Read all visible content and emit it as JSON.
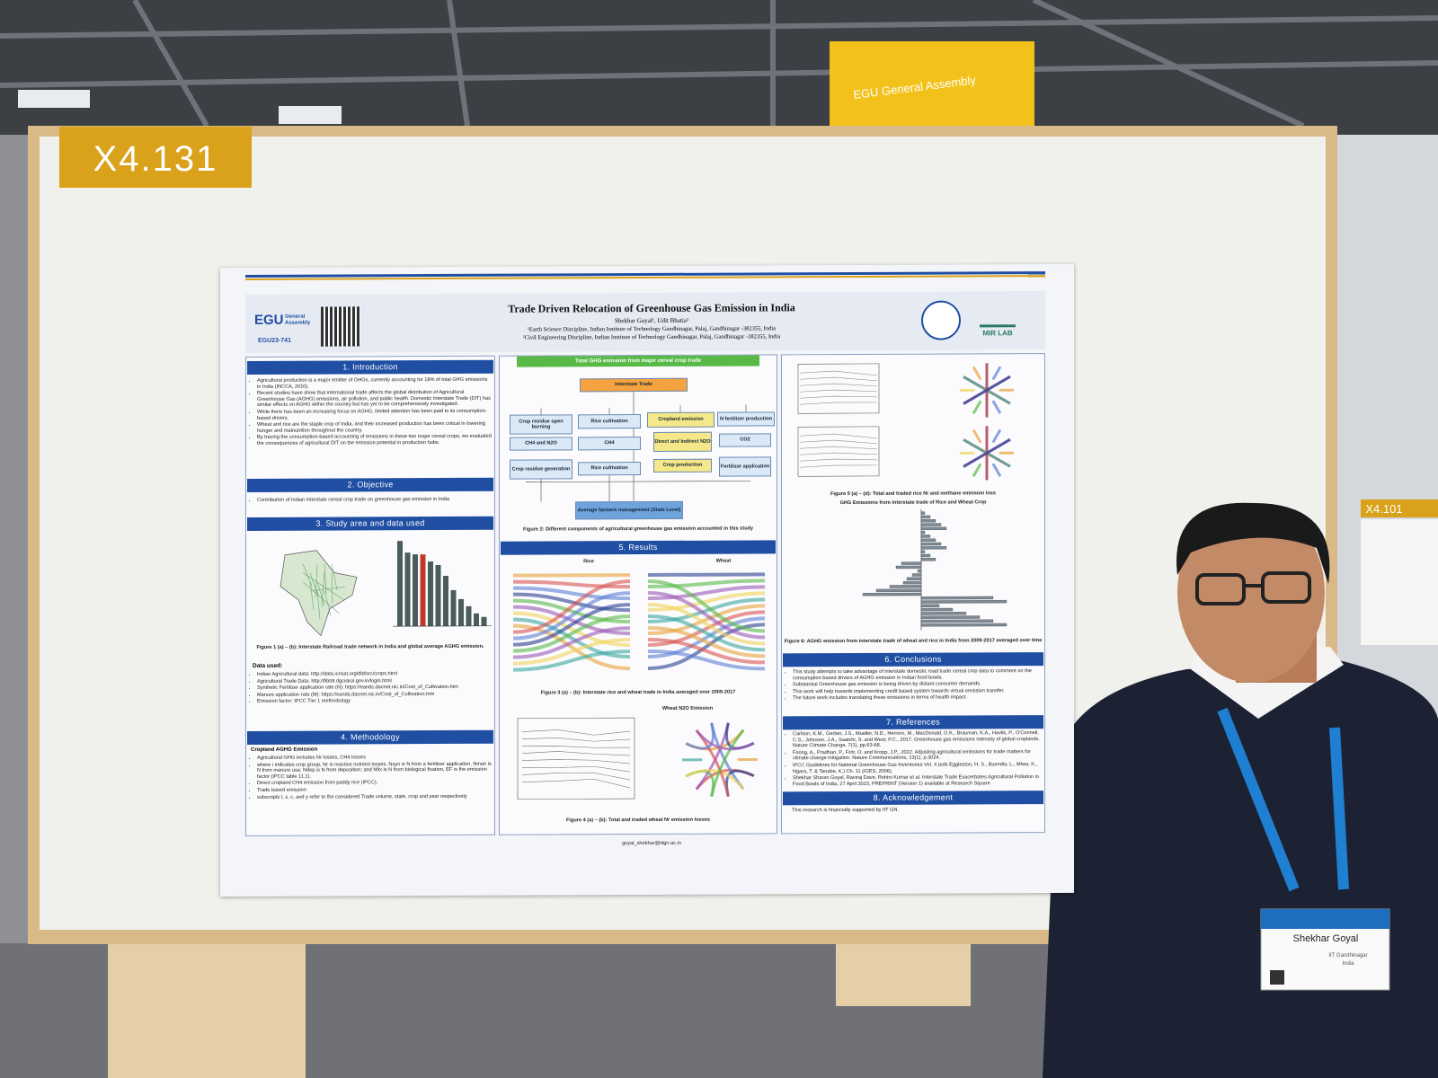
{
  "board": {
    "label": "X4.131"
  },
  "neighbor_board": {
    "label": "X4.101"
  },
  "sign": {
    "text": "EGU General Assembly"
  },
  "poster": {
    "header": {
      "title": "Trade Driven Relocation of Greenhouse Gas Emission in India",
      "authors": "Shekhar Goyal¹, Udit Bhatia²",
      "affiliations": [
        "¹Earth Science Discipline, Indian Institute of Technology Gandhinagar, Palaj, Gandhinagar -382355, India",
        "²Civil Engineering Discipline, Indian Institute of Technology Gandhinagar, Palaj, Gandhinagar -382355, India"
      ],
      "egu_logo": "EGU",
      "egu_logo_sub": "General Assembly",
      "abstract_id": "EGU23-741",
      "lab_logo": "MIR LAB"
    },
    "introduction": {
      "heading": "1. Introduction",
      "bullets": [
        "Agricultural production is a major emitter of GHGs, currently accounting for 18% of total GHG emissions in India (INCCA, 2010).",
        "Recent studies have show that international trade affects the global distribution of Agricultural Greenhouse Gas (AGHG) emissions, air pollution, and public health. Domestic Interstate Trade (DIT) has similar effects on AGHG within the country but has yet to be comprehensively investigated.",
        "While there has been an increasing focus on AGHG, limited attention has been paid to its consumption-based drivers.",
        "Wheat and rice are the staple crop of India, and their increased production has been critical in lowering hunger and malnutrition throughout the country.",
        "By tracing the consumption-based accounting of emissions in these two major cereal crops, we evaluated the consequences of agricultural DIT on the emission potential in production hubs."
      ]
    },
    "objective": {
      "heading": "2. Objective",
      "bullets": [
        "Contribution of Indian interstate cereal crop trade on greenhouse gas emission in India"
      ]
    },
    "study_area": {
      "heading": "3. Study area and data used",
      "figure_caption": "Figure 1 (a) – (b): Interstate Railroad trade network in India and global average AGHG emission.",
      "data_heading": "Data used:",
      "data_items": [
        "Indian Agricultural data: http://data.icrisat.org/dld/src/crops.html",
        "Agricultural Trade Data: http://fibtdr.dgciskol.gov.in/login.html",
        "Synthetic Fertilizer application rate (N): https://eands.dacnet.nic.in/Cost_of_Cultivation.htm",
        "Manure application rate (M): https://eands.dacnet.nic.in/Cost_of_Cultivation.htm",
        "Emission factor: IPCC Tier 1 methodology"
      ]
    },
    "methodology": {
      "heading": "4. Methodology",
      "subheading": "Cropland AGHG Emission",
      "lines": [
        "Agricultural GHG includes Nr losses, CH4 losses",
        "where i indicates crop group, Nr is reactive nutrient losses, Nsyn is N from a fertilizer application, Nman is N from manure use; Ndep is N from deposition; and Nfix is N from biological fixation, EF is the emission factor (IPCC table 11.1).",
        "Direct cropland CH4 emission from paddy rice (IPCC).",
        "Trade based emission",
        "subscripts t, s, c, and y refer to the considered Trade volume, state, crop and year respectively"
      ]
    },
    "flowchart": {
      "title": "Total GHG emission from major cereal crop trade",
      "nodes": [
        "Interstate Trade",
        "Crop residue open burning",
        "Rice cultivation",
        "Cropland emission",
        "N fertilizer production",
        "CH4 and N2O",
        "CH4",
        "Direct and Indirect N2O",
        "CO2",
        "Crop residue generation",
        "Rice cultivation",
        "Crop production",
        "Fertilizer application",
        "Average farmers management (State Level)"
      ],
      "caption": "Figure 2: Different components of agricultural greenhouse gas emission accounted in this study"
    },
    "results": {
      "heading": "5. Results",
      "rice_label": "Rice",
      "wheat_label": "Wheat",
      "figure3_caption": "Figure 3 (a) – (b): Interstate rice and wheat trade in India averaged over 2009-2017",
      "wheat_n2o_title": "Wheat N2O Emission",
      "figure4_caption": "Figure 4 (a) – (b): Total and traded wheat Nr emission losses"
    },
    "figure5_caption": "Figure 5 (a) – (d): Total and traded rice Nr and methane emission loss",
    "figure6_title": "GHG Emissions from interstate trade of Rice and Wheat Crop",
    "figure6_caption": "Figure 6: AGHG emission from interstate trade of wheat and rice in India from 2009-2017 averaged over time",
    "conclusions": {
      "heading": "6. Conclusions",
      "bullets": [
        "This study attempts to take advantage of interstate domestic road trade cereal crop data to comment on the consumption based drivers of AGHG emission in Indian food bowls.",
        "Substantial Greenhouse gas emission is being driven by distant consumer demands.",
        "This work will help towards implementing credit based system towards virtual emission transfer.",
        "The future work includes translating these emissions in terms of health impact."
      ]
    },
    "references": {
      "heading": "7. References",
      "items": [
        "Carlson, K.M., Gerber, J.S., Mueller, N.D., Herrero, M., MacDonald, G.K., Brauman, K.A., Havlik, P., O'Connell, C.S., Johnson, J.A., Saatchi, S. and West, P.C., 2017. Greenhouse gas emissions intensity of global croplands. Nature Climate Change, 7(1), pp.63-68.",
        "Foong, A., Pradhan, P., Frör, O. and Kropp, J.P., 2022. Adjusting agricultural emissions for trade matters for climate change mitigation. Nature Communications, 13(1), p.3024.",
        "IPCC Guidelines for National Greenhouse Gas Inventories Vol. 4 (eds Eggleston, H. S., Buendia, L., Miwa, K., Ngara, T. & Tanabe, K.) Ch. 11 (IGES, 2006).",
        "Shekhar Sharan Goyal, Raviraj Dave, Rohini Kumar et al. Interstate Trade Exacerbates Agricultural Pollution in Food Bowls of India, 27 April 2023, PREPRINT (Version 1) available at Research Square"
      ]
    },
    "acknowledgement": {
      "heading": "8. Acknowledgement",
      "text": "This research is financially supported by IIT GN."
    },
    "footer_email": "goyal_shekhar@iitgn.ac.in"
  },
  "badge": {
    "name": "Shekhar Goyal",
    "affiliation": "IIT Gandhinagar",
    "country": "India"
  }
}
